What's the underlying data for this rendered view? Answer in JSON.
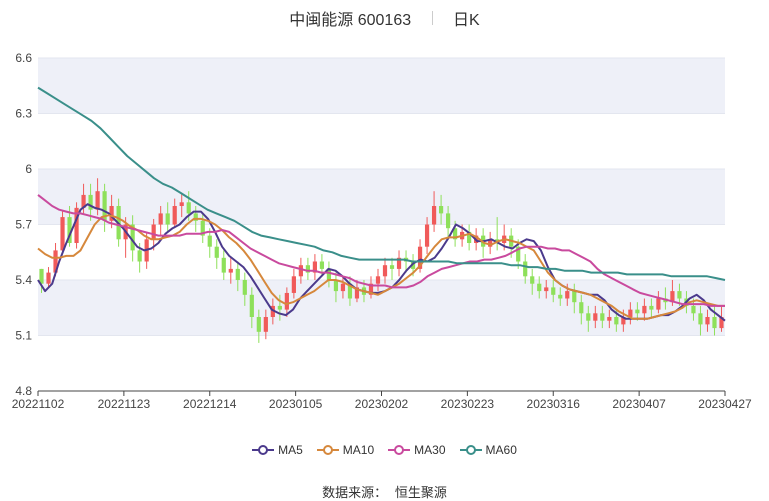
{
  "header": {
    "title": "中闽能源 600163",
    "period": "日K"
  },
  "source": {
    "label": "数据来源：",
    "name": "恒生聚源"
  },
  "chart_data": {
    "type": "candlestick",
    "ylim": [
      4.8,
      6.6
    ],
    "yticks": [
      "4.8",
      "5.1",
      "5.4",
      "5.7",
      "6",
      "6.3",
      "6.6"
    ],
    "xtick_labels": [
      "20221102",
      "20221123",
      "20221214",
      "20230105",
      "20230202",
      "20230223",
      "20230316",
      "20230407",
      "20230427"
    ],
    "colors": {
      "up": "#f05a5a",
      "down": "#8ee05a",
      "band": "#eef0f8"
    },
    "series": [
      {
        "name": "MA5",
        "color": "#4b3a8c",
        "values": [
          5.4,
          5.34,
          5.38,
          5.5,
          5.6,
          5.69,
          5.78,
          5.81,
          5.79,
          5.78,
          5.76,
          5.72,
          5.68,
          5.63,
          5.58,
          5.56,
          5.57,
          5.6,
          5.65,
          5.68,
          5.7,
          5.74,
          5.77,
          5.77,
          5.73,
          5.66,
          5.58,
          5.53,
          5.5,
          5.47,
          5.42,
          5.36,
          5.3,
          5.24,
          5.22,
          5.21,
          5.24,
          5.3,
          5.34,
          5.38,
          5.42,
          5.46,
          5.45,
          5.42,
          5.38,
          5.35,
          5.34,
          5.33,
          5.33,
          5.34,
          5.36,
          5.4,
          5.45,
          5.49,
          5.51,
          5.5,
          5.52,
          5.57,
          5.63,
          5.7,
          5.68,
          5.65,
          5.61,
          5.61,
          5.62,
          5.6,
          5.58,
          5.57,
          5.6,
          5.62,
          5.61,
          5.56,
          5.47,
          5.4,
          5.37,
          5.35,
          5.34,
          5.33,
          5.32,
          5.32,
          5.29,
          5.24,
          5.21,
          5.19,
          5.19,
          5.19,
          5.19,
          5.2,
          5.21,
          5.21,
          5.23,
          5.26,
          5.3,
          5.32,
          5.29,
          5.24,
          5.21,
          5.18
        ]
      },
      {
        "name": "MA10",
        "color": "#d6883c",
        "values": [
          5.57,
          5.54,
          5.52,
          5.52,
          5.53,
          5.53,
          5.56,
          5.63,
          5.7,
          5.74,
          5.75,
          5.74,
          5.72,
          5.69,
          5.67,
          5.64,
          5.62,
          5.62,
          5.63,
          5.64,
          5.66,
          5.7,
          5.73,
          5.73,
          5.72,
          5.7,
          5.67,
          5.63,
          5.6,
          5.56,
          5.51,
          5.45,
          5.39,
          5.33,
          5.29,
          5.27,
          5.28,
          5.3,
          5.32,
          5.34,
          5.37,
          5.4,
          5.4,
          5.39,
          5.37,
          5.35,
          5.34,
          5.33,
          5.32,
          5.34,
          5.36,
          5.38,
          5.41,
          5.44,
          5.48,
          5.53,
          5.58,
          5.62,
          5.63,
          5.63,
          5.64,
          5.65,
          5.63,
          5.6,
          5.59,
          5.61,
          5.62,
          5.61,
          5.6,
          5.58,
          5.56,
          5.5,
          5.44,
          5.4,
          5.37,
          5.35,
          5.34,
          5.33,
          5.32,
          5.3,
          5.28,
          5.26,
          5.23,
          5.21,
          5.19,
          5.19,
          5.19,
          5.2,
          5.21,
          5.22,
          5.23,
          5.25,
          5.28,
          5.29,
          5.28,
          5.27,
          5.26,
          5.26
        ]
      },
      {
        "name": "MA30",
        "color": "#c94a9e",
        "values": [
          5.86,
          5.83,
          5.8,
          5.78,
          5.77,
          5.76,
          5.76,
          5.75,
          5.74,
          5.73,
          5.71,
          5.7,
          5.69,
          5.68,
          5.67,
          5.66,
          5.65,
          5.64,
          5.64,
          5.64,
          5.64,
          5.65,
          5.65,
          5.65,
          5.66,
          5.66,
          5.67,
          5.66,
          5.63,
          5.6,
          5.57,
          5.55,
          5.53,
          5.51,
          5.49,
          5.48,
          5.47,
          5.46,
          5.45,
          5.45,
          5.44,
          5.44,
          5.43,
          5.42,
          5.41,
          5.39,
          5.38,
          5.37,
          5.37,
          5.37,
          5.36,
          5.36,
          5.36,
          5.37,
          5.39,
          5.42,
          5.44,
          5.46,
          5.47,
          5.48,
          5.49,
          5.5,
          5.5,
          5.51,
          5.51,
          5.52,
          5.53,
          5.55,
          5.57,
          5.58,
          5.58,
          5.58,
          5.57,
          5.57,
          5.56,
          5.56,
          5.54,
          5.52,
          5.5,
          5.46,
          5.43,
          5.41,
          5.39,
          5.37,
          5.35,
          5.33,
          5.32,
          5.31,
          5.3,
          5.29,
          5.28,
          5.27,
          5.27,
          5.27,
          5.27,
          5.26,
          5.26,
          5.26
        ]
      },
      {
        "name": "MA60",
        "color": "#3a8f8a",
        "values": [
          6.44,
          6.41,
          6.38,
          6.35,
          6.32,
          6.29,
          6.26,
          6.22,
          6.17,
          6.12,
          6.07,
          6.03,
          5.99,
          5.95,
          5.92,
          5.9,
          5.87,
          5.84,
          5.81,
          5.78,
          5.76,
          5.74,
          5.72,
          5.69,
          5.66,
          5.64,
          5.63,
          5.62,
          5.61,
          5.6,
          5.59,
          5.58,
          5.56,
          5.55,
          5.53,
          5.52,
          5.51,
          5.51,
          5.51,
          5.51,
          5.51,
          5.51,
          5.5,
          5.5,
          5.5,
          5.5,
          5.5,
          5.49,
          5.49,
          5.49,
          5.49,
          5.49,
          5.49,
          5.48,
          5.48,
          5.47,
          5.47,
          5.46,
          5.46,
          5.45,
          5.45,
          5.45,
          5.44,
          5.44,
          5.44,
          5.44,
          5.43,
          5.43,
          5.43,
          5.43,
          5.43,
          5.42,
          5.42,
          5.42,
          5.42,
          5.42,
          5.41,
          5.4
        ]
      }
    ],
    "candles": [
      [
        5.46,
        5.38,
        5.46,
        5.33
      ],
      [
        5.38,
        5.44,
        5.47,
        5.36
      ],
      [
        5.44,
        5.56,
        5.6,
        5.42
      ],
      [
        5.56,
        5.74,
        5.77,
        5.54
      ],
      [
        5.74,
        5.6,
        5.8,
        5.58
      ],
      [
        5.6,
        5.79,
        5.82,
        5.57
      ],
      [
        5.79,
        5.86,
        5.92,
        5.76
      ],
      [
        5.86,
        5.78,
        5.92,
        5.72
      ],
      [
        5.78,
        5.88,
        5.95,
        5.75
      ],
      [
        5.88,
        5.72,
        5.92,
        5.66
      ],
      [
        5.72,
        5.8,
        5.86,
        5.68
      ],
      [
        5.8,
        5.62,
        5.84,
        5.58
      ],
      [
        5.62,
        5.7,
        5.74,
        5.52
      ],
      [
        5.7,
        5.56,
        5.75,
        5.5
      ],
      [
        5.56,
        5.5,
        5.6,
        5.44
      ],
      [
        5.5,
        5.62,
        5.66,
        5.46
      ],
      [
        5.62,
        5.7,
        5.73,
        5.56
      ],
      [
        5.7,
        5.76,
        5.8,
        5.64
      ],
      [
        5.76,
        5.7,
        5.82,
        5.66
      ],
      [
        5.7,
        5.8,
        5.84,
        5.68
      ],
      [
        5.8,
        5.82,
        5.87,
        5.74
      ],
      [
        5.82,
        5.76,
        5.88,
        5.72
      ],
      [
        5.76,
        5.72,
        5.8,
        5.66
      ],
      [
        5.72,
        5.64,
        5.76,
        5.6
      ],
      [
        5.64,
        5.58,
        5.68,
        5.52
      ],
      [
        5.58,
        5.52,
        5.62,
        5.46
      ],
      [
        5.52,
        5.44,
        5.56,
        5.4
      ],
      [
        5.44,
        5.46,
        5.52,
        5.38
      ],
      [
        5.46,
        5.4,
        5.5,
        5.34
      ],
      [
        5.4,
        5.32,
        5.44,
        5.26
      ],
      [
        5.32,
        5.2,
        5.36,
        5.14
      ],
      [
        5.2,
        5.12,
        5.24,
        5.06
      ],
      [
        5.12,
        5.2,
        5.24,
        5.08
      ],
      [
        5.2,
        5.26,
        5.3,
        5.16
      ],
      [
        5.26,
        5.24,
        5.32,
        5.18
      ],
      [
        5.24,
        5.33,
        5.36,
        5.2
      ],
      [
        5.33,
        5.42,
        5.46,
        5.3
      ],
      [
        5.42,
        5.48,
        5.52,
        5.38
      ],
      [
        5.48,
        5.44,
        5.52,
        5.4
      ],
      [
        5.44,
        5.5,
        5.54,
        5.4
      ],
      [
        5.5,
        5.46,
        5.54,
        5.42
      ],
      [
        5.46,
        5.4,
        5.5,
        5.36
      ],
      [
        5.4,
        5.34,
        5.44,
        5.28
      ],
      [
        5.34,
        5.38,
        5.42,
        5.3
      ],
      [
        5.38,
        5.3,
        5.42,
        5.26
      ],
      [
        5.3,
        5.36,
        5.4,
        5.28
      ],
      [
        5.36,
        5.32,
        5.4,
        5.28
      ],
      [
        5.32,
        5.38,
        5.42,
        5.3
      ],
      [
        5.38,
        5.42,
        5.46,
        5.34
      ],
      [
        5.42,
        5.48,
        5.52,
        5.38
      ],
      [
        5.48,
        5.46,
        5.52,
        5.4
      ],
      [
        5.46,
        5.52,
        5.56,
        5.42
      ],
      [
        5.52,
        5.5,
        5.56,
        5.44
      ],
      [
        5.5,
        5.46,
        5.54,
        5.42
      ],
      [
        5.46,
        5.58,
        5.62,
        5.44
      ],
      [
        5.58,
        5.7,
        5.74,
        5.54
      ],
      [
        5.7,
        5.8,
        5.88,
        5.66
      ],
      [
        5.8,
        5.76,
        5.86,
        5.7
      ],
      [
        5.76,
        5.68,
        5.8,
        5.62
      ],
      [
        5.68,
        5.62,
        5.72,
        5.58
      ],
      [
        5.62,
        5.66,
        5.7,
        5.58
      ],
      [
        5.66,
        5.6,
        5.7,
        5.56
      ],
      [
        5.6,
        5.64,
        5.68,
        5.56
      ],
      [
        5.64,
        5.58,
        5.68,
        5.52
      ],
      [
        5.58,
        5.62,
        5.66,
        5.54
      ],
      [
        5.62,
        5.6,
        5.74,
        5.56
      ],
      [
        5.6,
        5.64,
        5.7,
        5.56
      ],
      [
        5.64,
        5.58,
        5.68,
        5.52
      ],
      [
        5.58,
        5.5,
        5.62,
        5.46
      ],
      [
        5.5,
        5.42,
        5.54,
        5.38
      ],
      [
        5.42,
        5.38,
        5.46,
        5.32
      ],
      [
        5.38,
        5.34,
        5.42,
        5.3
      ],
      [
        5.34,
        5.36,
        5.4,
        5.3
      ],
      [
        5.36,
        5.32,
        5.4,
        5.28
      ],
      [
        5.32,
        5.3,
        5.36,
        5.26
      ],
      [
        5.3,
        5.34,
        5.38,
        5.26
      ],
      [
        5.34,
        5.28,
        5.38,
        5.22
      ],
      [
        5.28,
        5.22,
        5.32,
        5.16
      ],
      [
        5.22,
        5.18,
        5.26,
        5.12
      ],
      [
        5.18,
        5.22,
        5.26,
        5.14
      ],
      [
        5.22,
        5.18,
        5.26,
        5.14
      ],
      [
        5.18,
        5.2,
        5.24,
        5.14
      ],
      [
        5.2,
        5.16,
        5.24,
        5.12
      ],
      [
        5.16,
        5.2,
        5.24,
        5.12
      ],
      [
        5.2,
        5.24,
        5.28,
        5.16
      ],
      [
        5.24,
        5.22,
        5.28,
        5.18
      ],
      [
        5.22,
        5.26,
        5.3,
        5.18
      ],
      [
        5.26,
        5.24,
        5.3,
        5.2
      ],
      [
        5.24,
        5.3,
        5.34,
        5.22
      ],
      [
        5.3,
        5.28,
        5.36,
        5.24
      ],
      [
        5.28,
        5.34,
        5.4,
        5.26
      ],
      [
        5.34,
        5.3,
        5.38,
        5.26
      ],
      [
        5.3,
        5.26,
        5.34,
        5.22
      ],
      [
        5.26,
        5.22,
        5.3,
        5.18
      ],
      [
        5.22,
        5.16,
        5.26,
        5.1
      ],
      [
        5.16,
        5.2,
        5.24,
        5.12
      ],
      [
        5.2,
        5.14,
        5.26,
        5.1
      ],
      [
        5.14,
        5.2,
        5.26,
        5.12
      ]
    ]
  },
  "legend_marker_colors": {
    "MA5": "#4b3a8c",
    "MA10": "#d6883c",
    "MA30": "#c94a9e",
    "MA60": "#3a8f8a"
  }
}
